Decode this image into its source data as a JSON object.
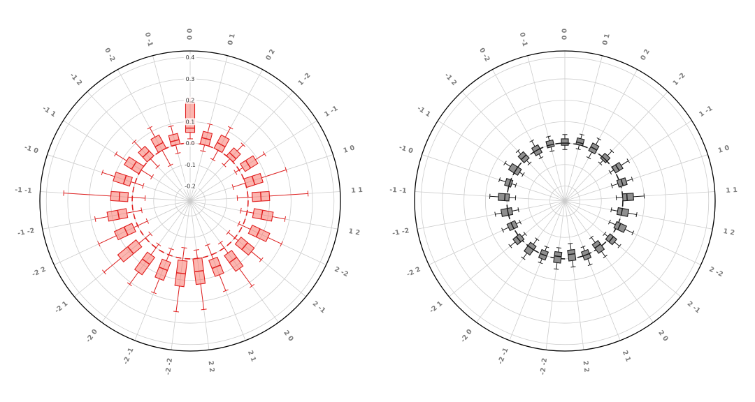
{
  "page": {
    "background": "#ffffff"
  },
  "layout_colors": {
    "grid_color": "#cccccc",
    "outline_color": "#000000",
    "theta_label_color": "#7a7a7a",
    "r_label_color": "#333333",
    "left_accent": "#e02020",
    "left_box_fill": "rgba(250,120,110,0.55)",
    "right_accent": "#1a1a1a",
    "right_box_fill": "#8f8f8f"
  },
  "chart_data": [
    {
      "id": "left",
      "type": "box",
      "polar": true,
      "theta_direction": "clockwise",
      "theta_zero": "top",
      "color": "#e02020",
      "box_fill": "rgba(250,120,110,0.55)",
      "reference_circle_value": 0.0,
      "reference_circle_style": "dashed",
      "r_min": -0.27,
      "r_max_plot": 0.43,
      "radial_tick_values": [
        0.4,
        0.3,
        0.2,
        0.1,
        0.0,
        -0.1,
        -0.2
      ],
      "radial_tick_labels": [
        "0.4",
        "0.3",
        "0.2",
        "0.1",
        "0.0",
        "-0.1",
        "-0.2"
      ],
      "show_radial_labels": true,
      "grid": true,
      "legend": "none",
      "categories": [
        "0 0",
        "0 1",
        "0 2",
        "1 -2",
        "1 -1",
        "1 0",
        "1 1",
        "1 2",
        "2 -2",
        "2 -1",
        "2 0",
        "2 1",
        "2 2",
        "-2 -2",
        "-2 -1",
        "-2 0",
        "-2 1",
        "-2 2",
        "-1 -2",
        "-1 -1",
        "-1 0",
        "-1 1",
        "-1 2",
        "0 -2",
        "0 -1"
      ],
      "boxes": [
        [
          0.02,
          0.05,
          0.07,
          0.19,
          0.21
        ],
        [
          -0.03,
          0.0,
          0.03,
          0.06,
          0.1
        ],
        [
          -0.05,
          0.0,
          0.03,
          0.07,
          0.12
        ],
        [
          -0.04,
          0.0,
          0.02,
          0.05,
          0.09
        ],
        [
          -0.02,
          0.02,
          0.05,
          0.09,
          0.14
        ],
        [
          -0.06,
          0.0,
          0.04,
          0.08,
          0.2
        ],
        [
          -0.05,
          0.02,
          0.06,
          0.1,
          0.28
        ],
        [
          -0.03,
          0.03,
          0.07,
          0.12,
          0.18
        ],
        [
          -0.02,
          0.04,
          0.08,
          0.13,
          0.2
        ],
        [
          -0.04,
          0.02,
          0.06,
          0.1,
          0.16
        ],
        [
          -0.03,
          0.03,
          0.07,
          0.12,
          0.22
        ],
        [
          -0.05,
          0.02,
          0.06,
          0.1,
          0.18
        ],
        [
          -0.04,
          0.0,
          0.06,
          0.12,
          0.24
        ],
        [
          -0.05,
          0.01,
          0.07,
          0.13,
          0.25
        ],
        [
          -0.03,
          0.03,
          0.07,
          0.12,
          0.19
        ],
        [
          -0.02,
          0.04,
          0.08,
          0.14,
          0.21
        ],
        [
          -0.03,
          0.04,
          0.09,
          0.15,
          0.25
        ],
        [
          -0.05,
          0.02,
          0.06,
          0.11,
          0.2
        ],
        [
          -0.04,
          0.03,
          0.07,
          0.12,
          0.18
        ],
        [
          -0.06,
          0.02,
          0.06,
          0.1,
          0.32
        ],
        [
          -0.04,
          0.02,
          0.05,
          0.1,
          0.16
        ],
        [
          -0.06,
          0.0,
          0.04,
          0.08,
          0.14
        ],
        [
          -0.05,
          0.0,
          0.03,
          0.06,
          0.11
        ],
        [
          -0.08,
          0.0,
          0.03,
          0.07,
          0.12
        ],
        [
          -0.04,
          0.0,
          0.02,
          0.05,
          0.09
        ]
      ]
    },
    {
      "id": "right",
      "type": "box",
      "polar": true,
      "theta_direction": "clockwise",
      "theta_zero": "top",
      "color": "#1a1a1a",
      "box_fill": "#8f8f8f",
      "reference_circle_value": 0.0,
      "reference_circle_style": "dashed",
      "r_min": -0.27,
      "r_max_plot": 0.43,
      "radial_tick_values": [
        0.4,
        0.3,
        0.2,
        0.1,
        0.0,
        -0.1,
        -0.2
      ],
      "radial_tick_labels": [
        "0.4",
        "0.3",
        "0.2",
        "0.1",
        "0.0",
        "-0.1",
        "-0.2"
      ],
      "show_radial_labels": false,
      "grid": true,
      "legend": "none",
      "categories": [
        "0 0",
        "0 1",
        "0 2",
        "1 -2",
        "1 -1",
        "1 0",
        "1 1",
        "1 2",
        "2 -2",
        "2 -1",
        "2 0",
        "2 1",
        "2 2",
        "-2 -2",
        "-2 -1",
        "-2 0",
        "-2 1",
        "-2 2",
        "-1 -2",
        "-1 -1",
        "-1 0",
        "-1 1",
        "-1 2",
        "0 -2",
        "0 -1"
      ],
      "boxes": [
        [
          -0.03,
          -0.01,
          0.0,
          0.02,
          0.04
        ],
        [
          -0.02,
          0.0,
          0.01,
          0.03,
          0.05
        ],
        [
          -0.04,
          -0.01,
          0.01,
          0.03,
          0.06
        ],
        [
          -0.03,
          -0.01,
          0.0,
          0.02,
          0.05
        ],
        [
          -0.02,
          0.0,
          0.02,
          0.04,
          0.08
        ],
        [
          -0.04,
          -0.01,
          0.01,
          0.03,
          0.06
        ],
        [
          -0.03,
          0.0,
          0.02,
          0.05,
          0.1
        ],
        [
          -0.05,
          -0.02,
          0.0,
          0.03,
          0.07
        ],
        [
          -0.04,
          -0.01,
          0.01,
          0.04,
          0.08
        ],
        [
          -0.03,
          -0.01,
          0.01,
          0.03,
          0.06
        ],
        [
          -0.06,
          -0.03,
          -0.01,
          0.02,
          0.05
        ],
        [
          -0.04,
          -0.02,
          0.0,
          0.02,
          0.05
        ],
        [
          -0.07,
          -0.04,
          -0.02,
          0.01,
          0.04
        ],
        [
          -0.05,
          -0.03,
          -0.01,
          0.02,
          0.05
        ],
        [
          -0.04,
          -0.02,
          0.0,
          0.02,
          0.04
        ],
        [
          -0.05,
          -0.02,
          0.0,
          0.03,
          0.06
        ],
        [
          -0.03,
          -0.01,
          0.01,
          0.03,
          0.06
        ],
        [
          -0.04,
          -0.02,
          0.0,
          0.02,
          0.05
        ],
        [
          -0.05,
          -0.02,
          0.0,
          0.03,
          0.06
        ],
        [
          -0.04,
          -0.01,
          0.01,
          0.04,
          0.08
        ],
        [
          -0.03,
          -0.01,
          0.0,
          0.02,
          0.05
        ],
        [
          -0.04,
          -0.02,
          0.0,
          0.03,
          0.06
        ],
        [
          -0.03,
          -0.01,
          0.01,
          0.03,
          0.05
        ],
        [
          -0.04,
          -0.02,
          0.0,
          0.02,
          0.05
        ],
        [
          -0.03,
          -0.01,
          0.0,
          0.02,
          0.04
        ]
      ]
    }
  ]
}
